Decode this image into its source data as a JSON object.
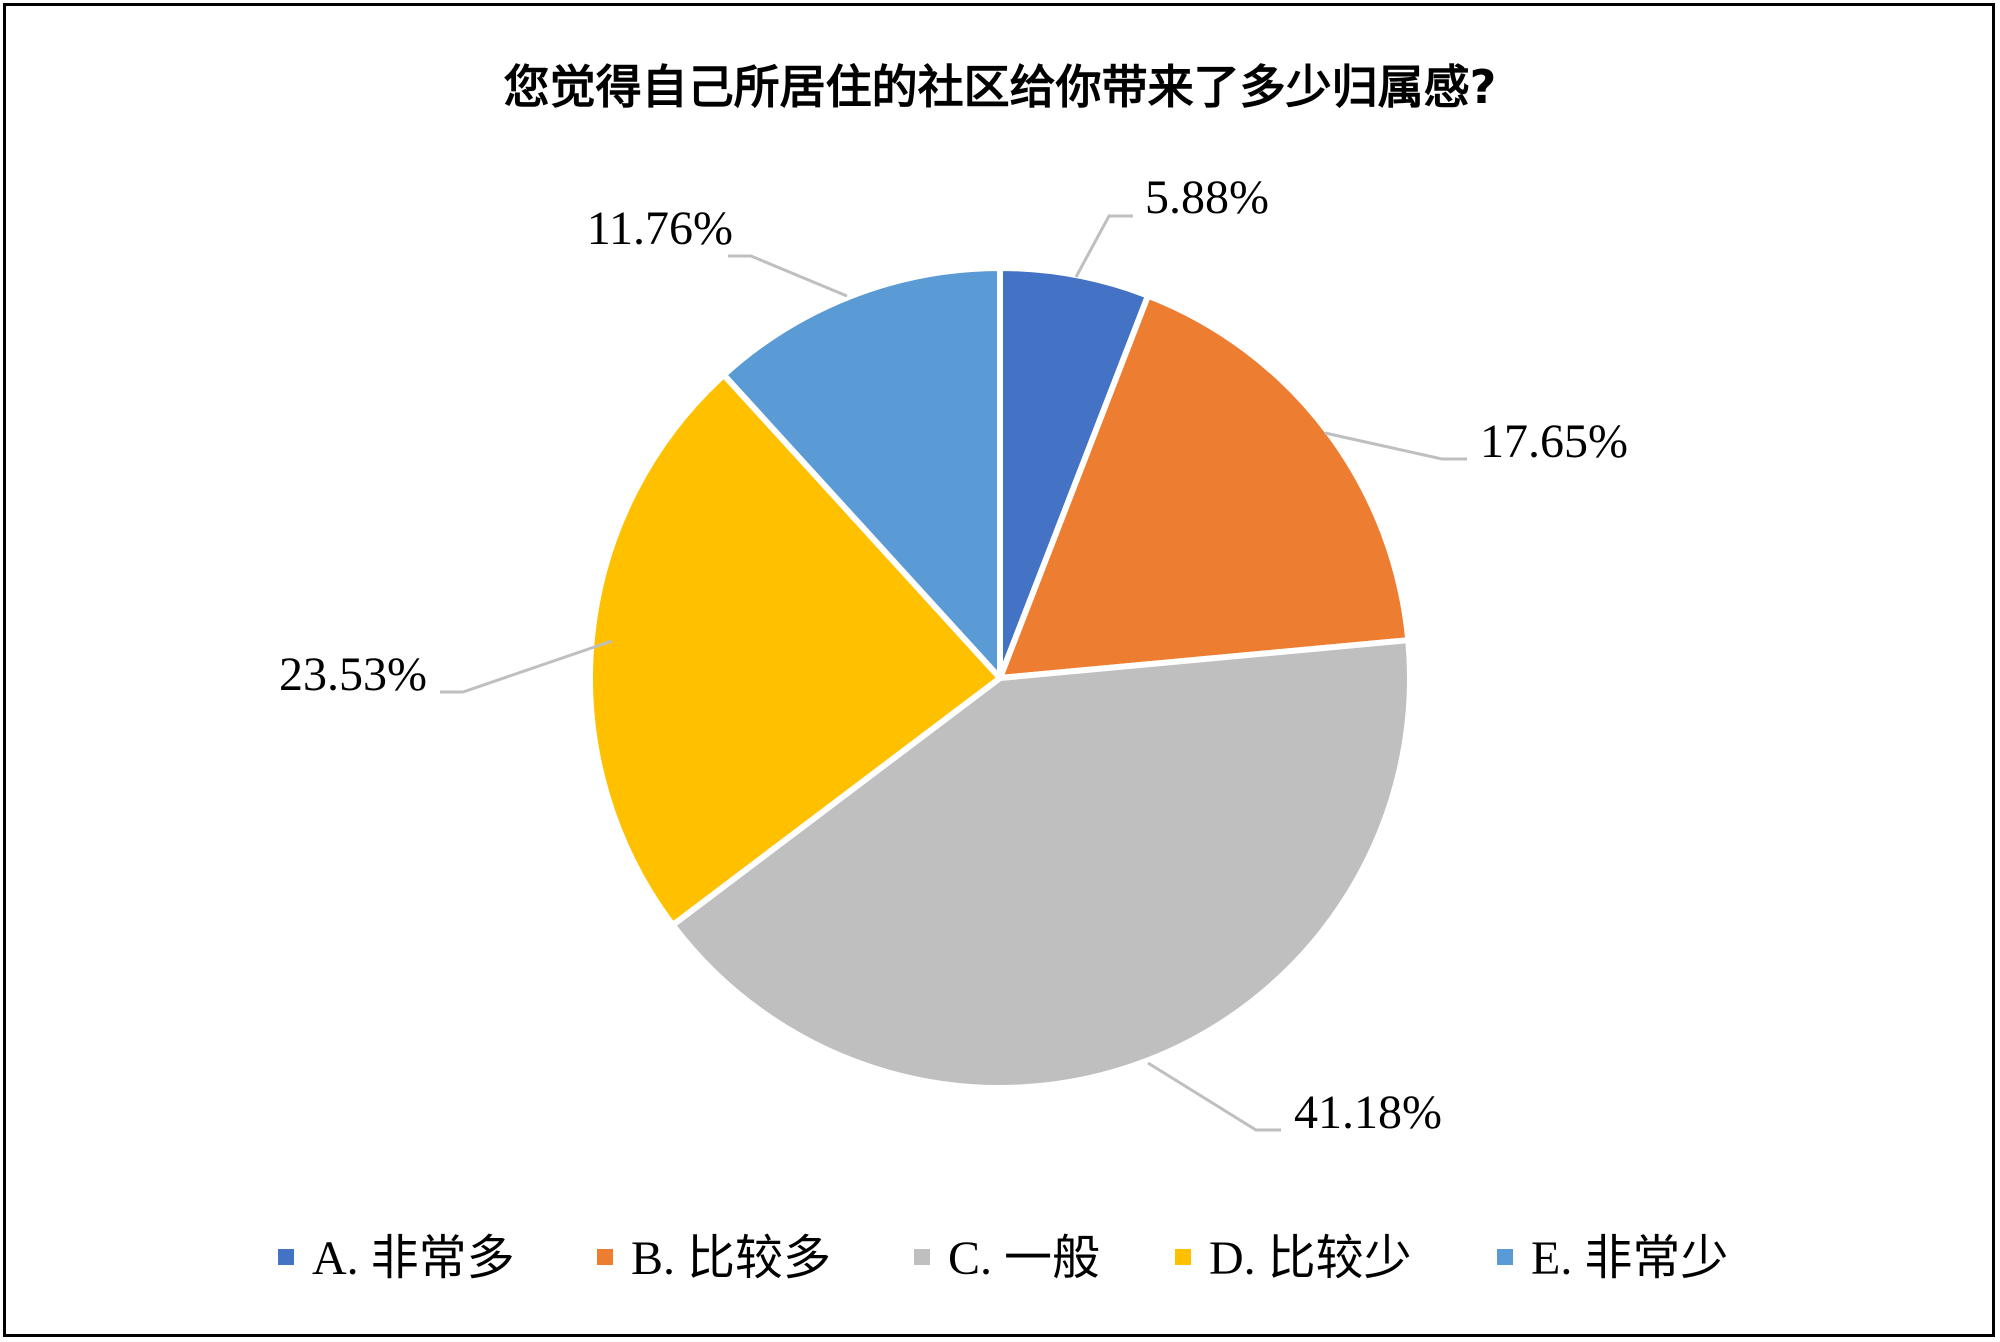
{
  "chart_data": {
    "type": "pie",
    "title": "您觉得自己所居住的社区给你带来了多少归属感?",
    "categories": [
      "A. 非常多",
      "B. 比较多",
      "C. 一般",
      "D. 比较少",
      "E. 非常少"
    ],
    "values": [
      5.88,
      17.65,
      41.18,
      23.53,
      11.76
    ],
    "data_labels": [
      "5.88%",
      "17.65%",
      "41.18%",
      "23.53%",
      "11.76%"
    ],
    "colors": [
      "#4472C4",
      "#ED7D31",
      "#BFBFBF",
      "#FFC000",
      "#5B9BD5"
    ],
    "unit": "%",
    "legend_position": "bottom",
    "start_angle": "12 o'clock",
    "direction": "clockwise"
  }
}
